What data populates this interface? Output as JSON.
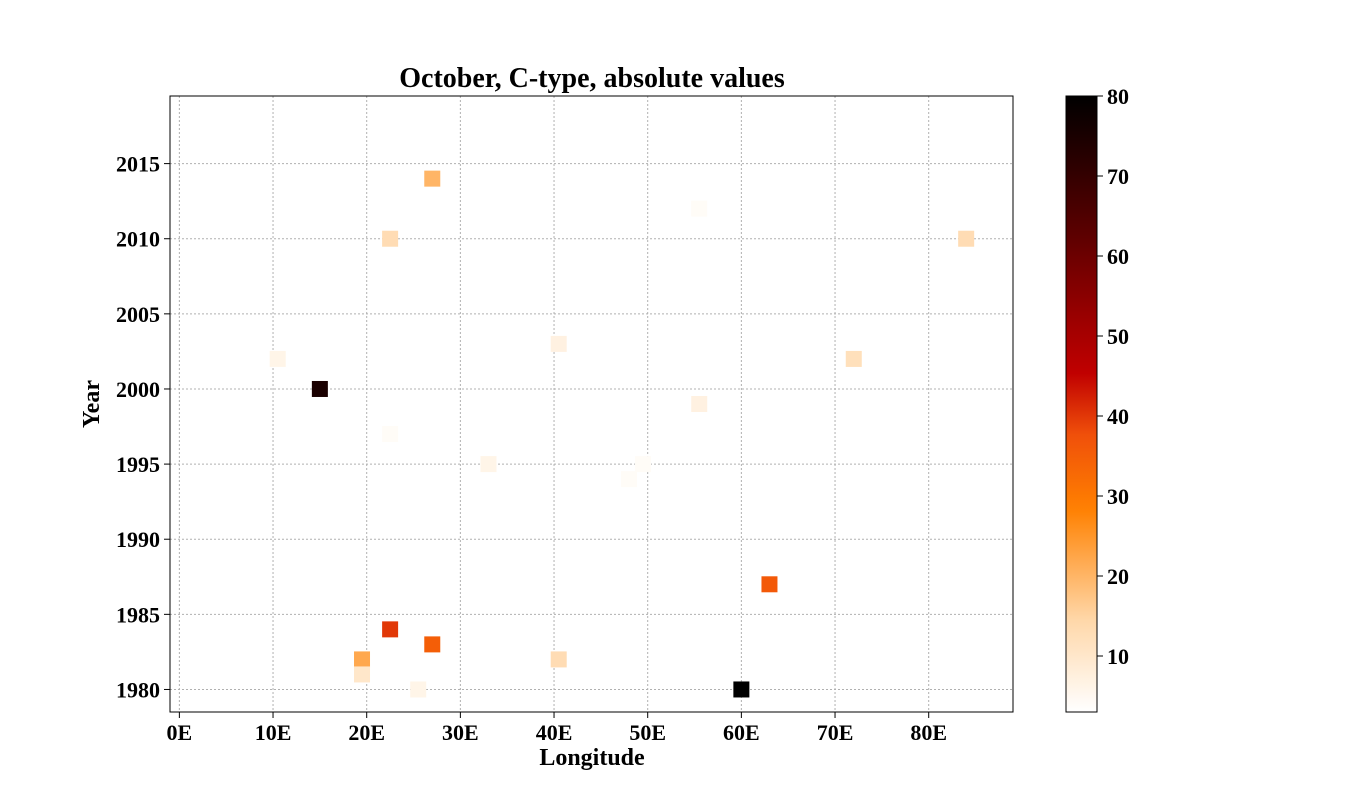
{
  "chart_data": {
    "type": "heatmap",
    "title": "October, C-type, absolute values",
    "xlabel": "Longitude",
    "ylabel": "Year",
    "xlim": [
      -1,
      89
    ],
    "ylim": [
      1978.5,
      2019.5
    ],
    "xticks": [
      0,
      10,
      20,
      30,
      40,
      50,
      60,
      70,
      80
    ],
    "xtick_labels": [
      "0E",
      "10E",
      "20E",
      "30E",
      "40E",
      "50E",
      "60E",
      "70E",
      "80E"
    ],
    "yticks": [
      1980,
      1985,
      1990,
      1995,
      2000,
      2005,
      2010,
      2015
    ],
    "ytick_labels": [
      "1980",
      "1985",
      "1990",
      "1995",
      "2000",
      "2005",
      "2010",
      "2015"
    ],
    "grid": true,
    "colormap": "gist_heat_r",
    "colorbar": {
      "vmin": 3,
      "vmax": 80,
      "ticks": [
        10,
        20,
        30,
        40,
        50,
        60,
        70,
        80
      ],
      "tick_labels": [
        "10",
        "20",
        "30",
        "40",
        "50",
        "60",
        "70",
        "80"
      ]
    },
    "points": [
      {
        "lon": 27,
        "year": 2014,
        "value": 20
      },
      {
        "lon": 55.5,
        "year": 2012,
        "value": 4
      },
      {
        "lon": 22.5,
        "year": 2010,
        "value": 13
      },
      {
        "lon": 84,
        "year": 2010,
        "value": 13
      },
      {
        "lon": 40.5,
        "year": 2003,
        "value": 7
      },
      {
        "lon": 10.5,
        "year": 2002,
        "value": 6
      },
      {
        "lon": 72,
        "year": 2002,
        "value": 12
      },
      {
        "lon": 15,
        "year": 2000,
        "value": 75
      },
      {
        "lon": 55.5,
        "year": 1999,
        "value": 7
      },
      {
        "lon": 22.5,
        "year": 1997,
        "value": 4
      },
      {
        "lon": 33,
        "year": 1995,
        "value": 6
      },
      {
        "lon": 49.5,
        "year": 1995,
        "value": 4
      },
      {
        "lon": 48,
        "year": 1994,
        "value": 4
      },
      {
        "lon": 63,
        "year": 1987,
        "value": 36
      },
      {
        "lon": 22.5,
        "year": 1984,
        "value": 40
      },
      {
        "lon": 27,
        "year": 1983,
        "value": 35
      },
      {
        "lon": 19.5,
        "year": 1982,
        "value": 22
      },
      {
        "lon": 40.5,
        "year": 1982,
        "value": 13
      },
      {
        "lon": 19.5,
        "year": 1981,
        "value": 10
      },
      {
        "lon": 25.5,
        "year": 1980,
        "value": 6
      },
      {
        "lon": 60,
        "year": 1980,
        "value": 80
      }
    ]
  }
}
